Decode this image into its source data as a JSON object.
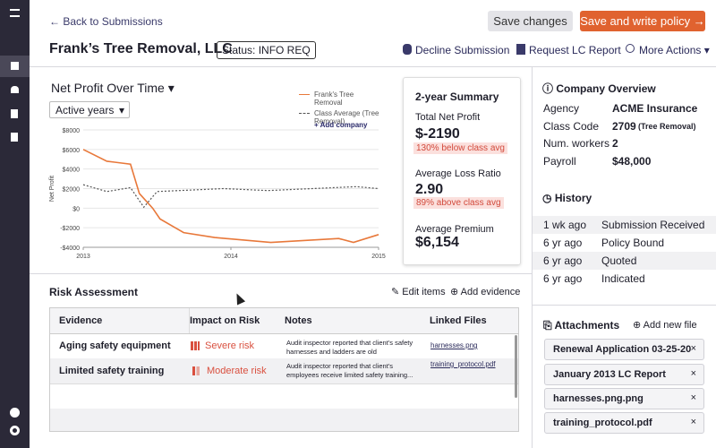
{
  "header": {
    "back_link": "← Back to Submissions",
    "save": "Save changes",
    "save_write": "Save and write policy →",
    "title": "Frank’s Tree Removal, LLC",
    "status": "Status: INFO REQ",
    "actions": [
      "Decline Submission",
      "Request LC Report",
      "More Actions"
    ]
  },
  "chart_data": {
    "type": "line",
    "title": "Net Profit Over Time",
    "filter": "Active years",
    "add_company": "+ Add company",
    "y_label": "Net Profit",
    "xlim": [
      2013,
      2015
    ],
    "xticks": [
      2013,
      2014,
      2015
    ],
    "ylim": [
      -4000,
      8000
    ],
    "yticks": [
      {
        "value": -4000,
        "label": "-$4000"
      },
      {
        "value": -2000,
        "label": "-$2000"
      },
      {
        "value": 0,
        "label": "$0"
      },
      {
        "value": 2000,
        "label": "$2000"
      },
      {
        "value": 4000,
        "label": "$4000"
      },
      {
        "value": 6000,
        "label": "$6000"
      },
      {
        "value": 8000,
        "label": "$8000"
      }
    ],
    "grid": true,
    "series": [
      {
        "name": "Frank's Tree Removal",
        "color": "#e8783a",
        "dashed": false,
        "x": [
          2013,
          2013.16,
          2013.32,
          2013.38,
          2013.47,
          2013.52,
          2013.68,
          2013.89,
          2014.27,
          2014.73,
          2014.83,
          2015
        ],
        "values": [
          6000,
          4800,
          4500,
          1500,
          0,
          -1100,
          -2500,
          -3000,
          -3500,
          -3100,
          -3500,
          -2700
        ]
      },
      {
        "name": "Class Average (Tree Removal)",
        "color": "#555555",
        "dashed": true,
        "x": [
          2013,
          2013.16,
          2013.32,
          2013.41,
          2013.5,
          2013.65,
          2013.95,
          2014.25,
          2014.55,
          2014.85,
          2015
        ],
        "values": [
          2400,
          1700,
          2100,
          100,
          1700,
          1800,
          2000,
          1800,
          2000,
          2200,
          2000
        ]
      }
    ]
  },
  "summary": {
    "title": "2-year Summary",
    "items": [
      {
        "label": "Total Net Profit",
        "value": "$-2190",
        "note": "130% below class avg"
      },
      {
        "label": "Average Loss Ratio",
        "value": "2.90",
        "note": "89% above class avg"
      },
      {
        "label": "Average Premium",
        "value": "$6,154"
      }
    ]
  },
  "risk": {
    "title": "Risk Assessment",
    "edit": "Edit items",
    "add": "Add evidence",
    "headers": [
      "Evidence",
      "Impact on Risk",
      "Notes",
      "Linked Files"
    ],
    "rows": [
      [
        "Aging safety equipment",
        "Severe risk",
        "Audit inspector reported that client's safety harnesses and ladders are old",
        "harnesses.png"
      ],
      [
        "Limited safety training",
        "Moderate risk",
        "Audit inspector reported that client's employees receive limited safety training...",
        "training_protocol.pdf"
      ]
    ]
  },
  "overview": {
    "title": "Company Overview",
    "rows": [
      [
        "Agency",
        "ACME Insurance"
      ],
      [
        "Class Code",
        "2709",
        "(Tree Removal)"
      ],
      [
        "Num. workers",
        "2"
      ],
      [
        "Payroll",
        "$48,000"
      ]
    ]
  },
  "history": {
    "title": "History",
    "rows": [
      [
        "1 wk ago",
        "Submission Received"
      ],
      [
        "6 yr ago",
        "Policy Bound"
      ],
      [
        "6 yr ago",
        "Quoted"
      ],
      [
        "6 yr ago",
        "Indicated"
      ]
    ]
  },
  "attachments": {
    "title": "Attachments",
    "add": "Add new file",
    "files": [
      "Renewal Application 03-25-20",
      "January 2013 LC Report",
      "harnesses.png.png",
      "training_protocol.pdf"
    ]
  }
}
